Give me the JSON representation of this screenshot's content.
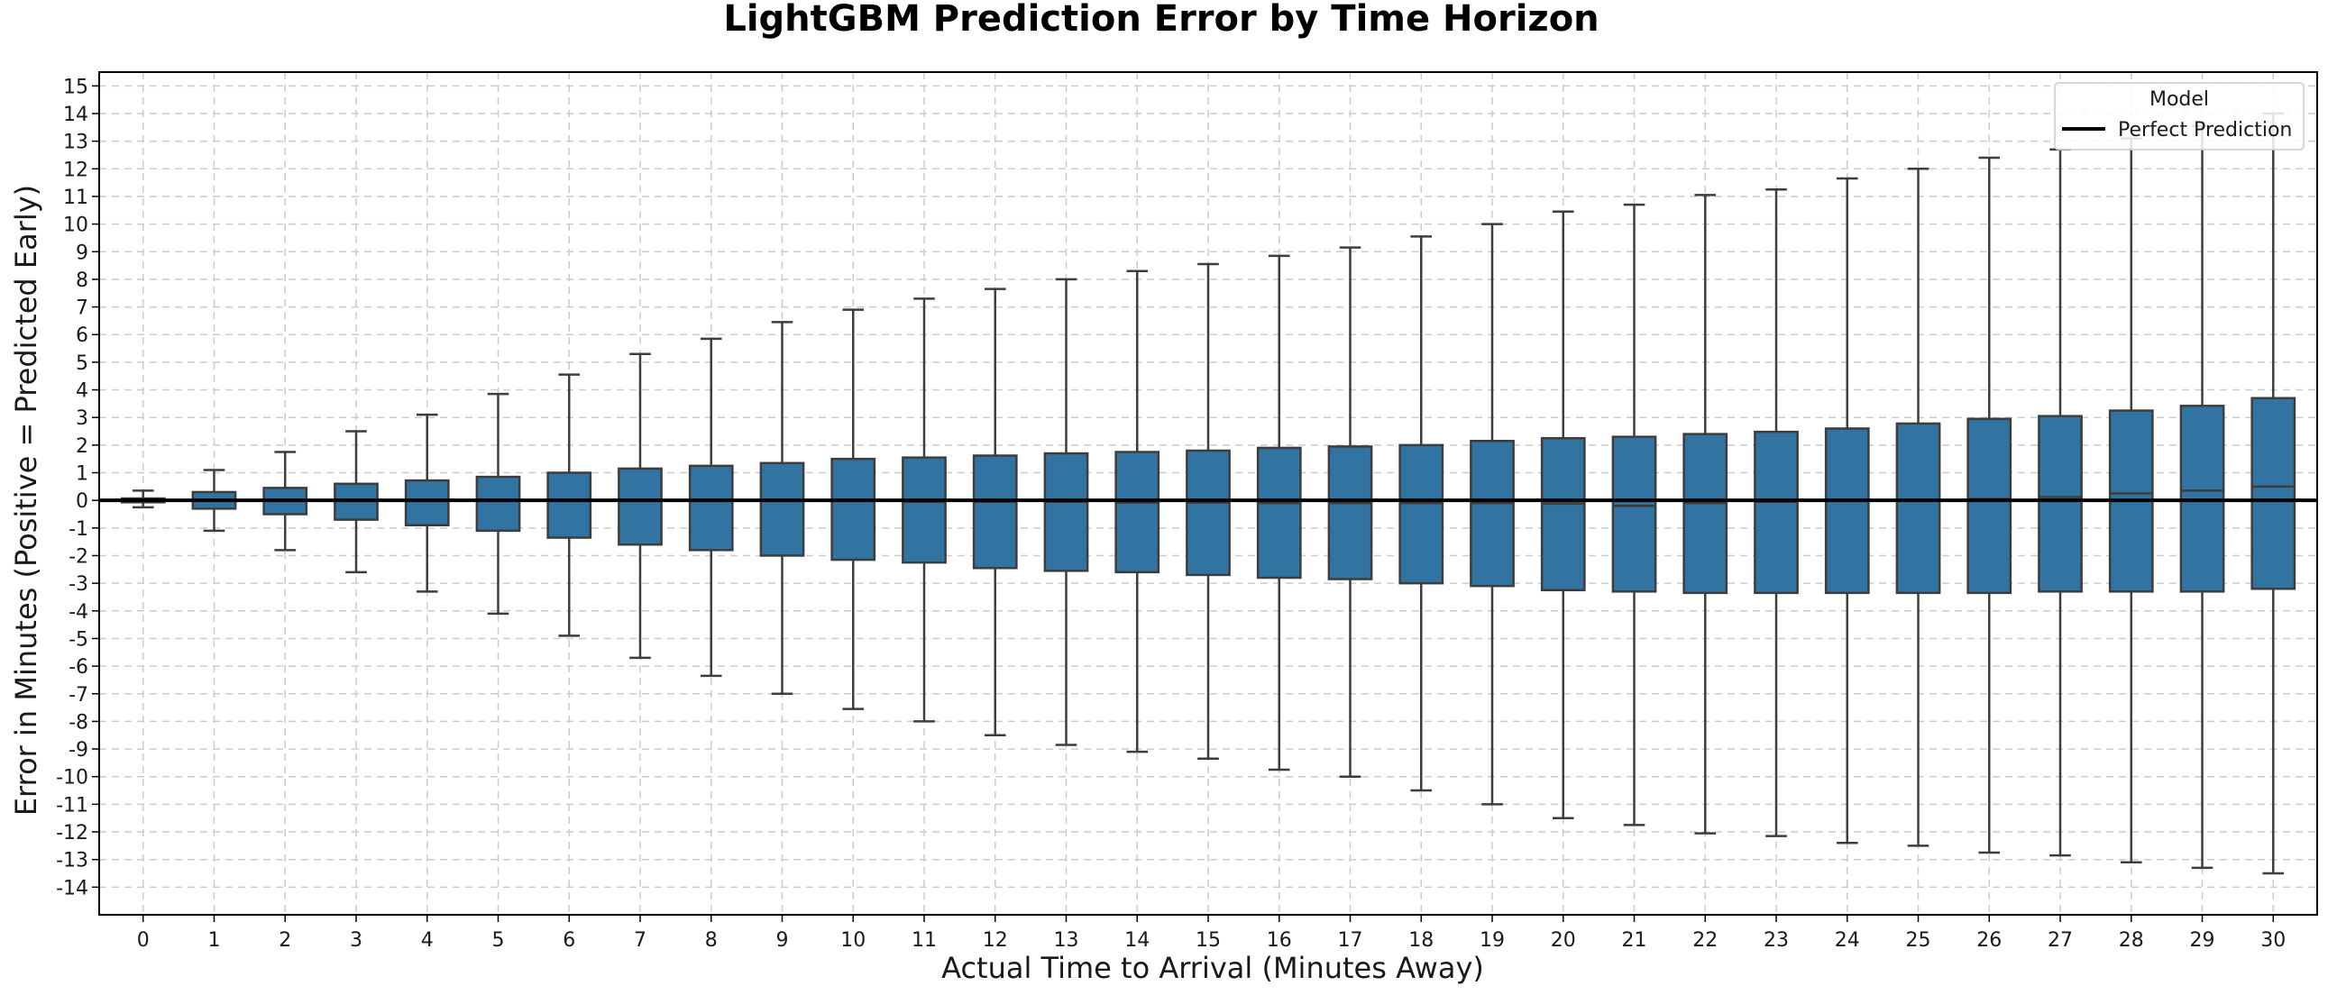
{
  "chart_data": {
    "type": "box",
    "title": "LightGBM Prediction Error by Time Horizon",
    "xlabel": "Actual Time to Arrival (Minutes Away)",
    "ylabel": "Error in Minutes (Positive = Predicted Early)",
    "ylim": [
      -15,
      15.5
    ],
    "yticks": [
      -14,
      -13,
      -12,
      -11,
      -10,
      -9,
      -8,
      -7,
      -6,
      -5,
      -4,
      -3,
      -2,
      -1,
      0,
      1,
      2,
      3,
      4,
      5,
      6,
      7,
      8,
      9,
      10,
      11,
      12,
      13,
      14,
      15
    ],
    "grid": true,
    "box_color": "#3274a1",
    "reference_line": {
      "label": "Perfect Prediction",
      "y": 0,
      "color": "#000000"
    },
    "legend": {
      "title": "Model",
      "entries": [
        "Perfect Prediction"
      ],
      "placement": "top-right"
    },
    "categories": [
      "0",
      "1",
      "2",
      "3",
      "4",
      "5",
      "6",
      "7",
      "8",
      "9",
      "10",
      "11",
      "12",
      "13",
      "14",
      "15",
      "16",
      "17",
      "18",
      "19",
      "20",
      "21",
      "22",
      "23",
      "24",
      "25",
      "26",
      "27",
      "28",
      "29",
      "30"
    ],
    "boxes": [
      {
        "whislo": -0.25,
        "q1": -0.07,
        "med": 0.0,
        "q3": 0.07,
        "whishi": 0.35
      },
      {
        "whislo": -1.1,
        "q1": -0.3,
        "med": 0.0,
        "q3": 0.3,
        "whishi": 1.1
      },
      {
        "whislo": -1.8,
        "q1": -0.5,
        "med": 0.0,
        "q3": 0.45,
        "whishi": 1.75
      },
      {
        "whislo": -2.6,
        "q1": -0.7,
        "med": 0.0,
        "q3": 0.6,
        "whishi": 2.5
      },
      {
        "whislo": -3.3,
        "q1": -0.9,
        "med": 0.0,
        "q3": 0.72,
        "whishi": 3.1
      },
      {
        "whislo": -4.1,
        "q1": -1.1,
        "med": 0.0,
        "q3": 0.85,
        "whishi": 3.85
      },
      {
        "whislo": -4.9,
        "q1": -1.35,
        "med": 0.0,
        "q3": 1.0,
        "whishi": 4.55
      },
      {
        "whislo": -5.7,
        "q1": -1.6,
        "med": 0.0,
        "q3": 1.15,
        "whishi": 5.3
      },
      {
        "whislo": -6.35,
        "q1": -1.8,
        "med": 0.0,
        "q3": 1.25,
        "whishi": 5.85
      },
      {
        "whislo": -7.0,
        "q1": -2.0,
        "med": 0.0,
        "q3": 1.35,
        "whishi": 6.45
      },
      {
        "whislo": -7.55,
        "q1": -2.15,
        "med": 0.0,
        "q3": 1.5,
        "whishi": 6.9
      },
      {
        "whislo": -8.0,
        "q1": -2.25,
        "med": -0.05,
        "q3": 1.55,
        "whishi": 7.3
      },
      {
        "whislo": -8.5,
        "q1": -2.45,
        "med": -0.05,
        "q3": 1.62,
        "whishi": 7.65
      },
      {
        "whislo": -8.85,
        "q1": -2.55,
        "med": -0.05,
        "q3": 1.7,
        "whishi": 8.0
      },
      {
        "whislo": -9.1,
        "q1": -2.6,
        "med": -0.08,
        "q3": 1.75,
        "whishi": 8.3
      },
      {
        "whislo": -9.35,
        "q1": -2.7,
        "med": -0.08,
        "q3": 1.8,
        "whishi": 8.55
      },
      {
        "whislo": -9.75,
        "q1": -2.8,
        "med": -0.1,
        "q3": 1.9,
        "whishi": 8.85
      },
      {
        "whislo": -10.0,
        "q1": -2.85,
        "med": -0.1,
        "q3": 1.95,
        "whishi": 9.15
      },
      {
        "whislo": -10.5,
        "q1": -3.0,
        "med": -0.1,
        "q3": 2.0,
        "whishi": 9.55
      },
      {
        "whislo": -11.0,
        "q1": -3.1,
        "med": -0.1,
        "q3": 2.15,
        "whishi": 10.0
      },
      {
        "whislo": -11.5,
        "q1": -3.25,
        "med": -0.12,
        "q3": 2.25,
        "whishi": 10.45
      },
      {
        "whislo": -11.75,
        "q1": -3.3,
        "med": -0.2,
        "q3": 2.3,
        "whishi": 10.7
      },
      {
        "whislo": -12.05,
        "q1": -3.35,
        "med": -0.1,
        "q3": 2.4,
        "whishi": 11.05
      },
      {
        "whislo": -12.15,
        "q1": -3.35,
        "med": -0.05,
        "q3": 2.48,
        "whishi": 11.25
      },
      {
        "whislo": -12.4,
        "q1": -3.35,
        "med": -0.02,
        "q3": 2.6,
        "whishi": 11.65
      },
      {
        "whislo": -12.5,
        "q1": -3.35,
        "med": 0.0,
        "q3": 2.78,
        "whishi": 12.0
      },
      {
        "whislo": -12.75,
        "q1": -3.35,
        "med": 0.05,
        "q3": 2.95,
        "whishi": 12.4
      },
      {
        "whislo": -12.85,
        "q1": -3.3,
        "med": 0.12,
        "q3": 3.05,
        "whishi": 12.7
      },
      {
        "whislo": -13.1,
        "q1": -3.3,
        "med": 0.25,
        "q3": 3.25,
        "whishi": 13.1
      },
      {
        "whislo": -13.3,
        "q1": -3.3,
        "med": 0.35,
        "q3": 3.42,
        "whishi": 13.55
      },
      {
        "whislo": -13.5,
        "q1": -3.2,
        "med": 0.5,
        "q3": 3.7,
        "whishi": 14.0
      }
    ]
  }
}
